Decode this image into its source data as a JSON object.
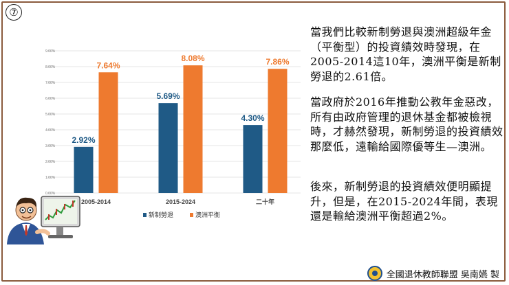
{
  "slide_number": "⑦",
  "chart_data": {
    "type": "bar",
    "categories": [
      "2005-2014",
      "2015-2024",
      "二十年"
    ],
    "series": [
      {
        "name": "新制勞退",
        "values": [
          2.92,
          5.69,
          4.3
        ],
        "color": "#1f5a86"
      },
      {
        "name": "澳洲平衡",
        "values": [
          7.64,
          8.08,
          7.86
        ],
        "color": "#ee7a2f"
      }
    ],
    "value_labels": [
      [
        "2.92%",
        "5.69%",
        "4.30%"
      ],
      [
        "7.64%",
        "8.08%",
        "7.86%"
      ]
    ],
    "ylim": [
      0,
      9
    ],
    "yticks": [
      "0.00%",
      "1.00%",
      "2.00%",
      "3.00%",
      "4.00%",
      "5.00%",
      "6.00%",
      "7.00%",
      "8.00%",
      "9.00%"
    ],
    "legend_position": "bottom",
    "grid": true
  },
  "text": {
    "p1": "當我們比較新制勞退與澳洲超級年金（平衡型）的投資績效時發現，在2005-2014這10年，澳洲平衡是新制勞退的2.61倍。",
    "p2": "當政府於2016年推動公教年金惡改，所有由政府管理的退休基金都被檢視時，才赫然發現，新制勞退的投資績效那麼低，遠輸給國際優等生—澳洲。",
    "p3": "後來，新制勞退的投資績效便明顯提升，但是，在2015-2024年間，表現還是輸給澳洲平衡超過2%。"
  },
  "footer": {
    "credit": "全國退休教師聯盟 吳南嬿 製"
  }
}
